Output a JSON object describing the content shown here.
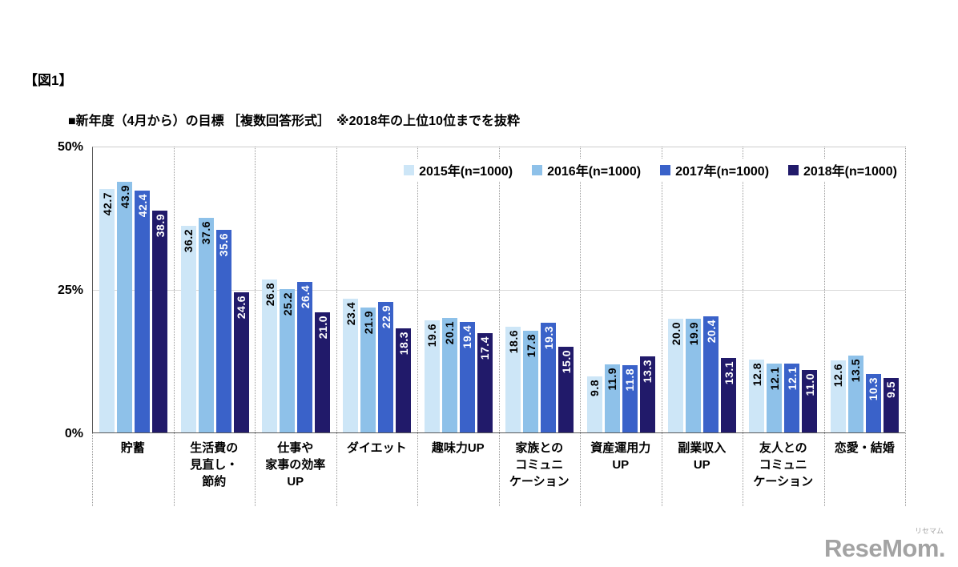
{
  "figure_label": "【図1】",
  "heading": "■新年度（4月から）の目標 ［複数回答形式］　※2018年の上位10位までを抜粋",
  "logo": {
    "text": "ReseMom.",
    "ruby": "リセマム"
  },
  "chart_data": {
    "type": "bar",
    "title": "新年度（4月から）の目標 ［複数回答形式］ ※2018年の上位10位までを抜粋",
    "xlabel": "",
    "ylabel": "",
    "ylim": [
      0,
      50
    ],
    "yticks": [
      "0%",
      "25%",
      "50%"
    ],
    "grid": true,
    "legend_position": "top-right",
    "categories": [
      "貯蓄",
      "生活費の\n見直し・\n節約",
      "仕事や\n家事の効率\nUP",
      "ダイエット",
      "趣味力UP",
      "家族との\nコミュニ\nケーション",
      "資産運用力\nUP",
      "副業収入\nUP",
      "友人との\nコミュニ\nケーション",
      "恋愛・結婚"
    ],
    "series": [
      {
        "name": "2015年(n=1000)",
        "color": "#cde6f7",
        "label_color": "#000000",
        "values": [
          42.7,
          36.2,
          26.8,
          23.4,
          19.6,
          18.6,
          9.8,
          20.0,
          12.8,
          12.6
        ]
      },
      {
        "name": "2016年(n=1000)",
        "color": "#8ec1e9",
        "label_color": "#000000",
        "values": [
          43.9,
          37.6,
          25.2,
          21.9,
          20.1,
          17.8,
          11.9,
          19.9,
          12.1,
          13.5
        ]
      },
      {
        "name": "2017年(n=1000)",
        "color": "#3a62c9",
        "label_color": "#ffffff",
        "values": [
          42.4,
          35.6,
          26.4,
          22.9,
          19.4,
          19.3,
          11.8,
          20.4,
          12.1,
          10.3
        ]
      },
      {
        "name": "2018年(n=1000)",
        "color": "#211a6a",
        "label_color": "#ffffff",
        "values": [
          38.9,
          24.6,
          21.0,
          18.3,
          17.4,
          15.0,
          13.3,
          13.1,
          11.0,
          9.5
        ]
      }
    ]
  }
}
